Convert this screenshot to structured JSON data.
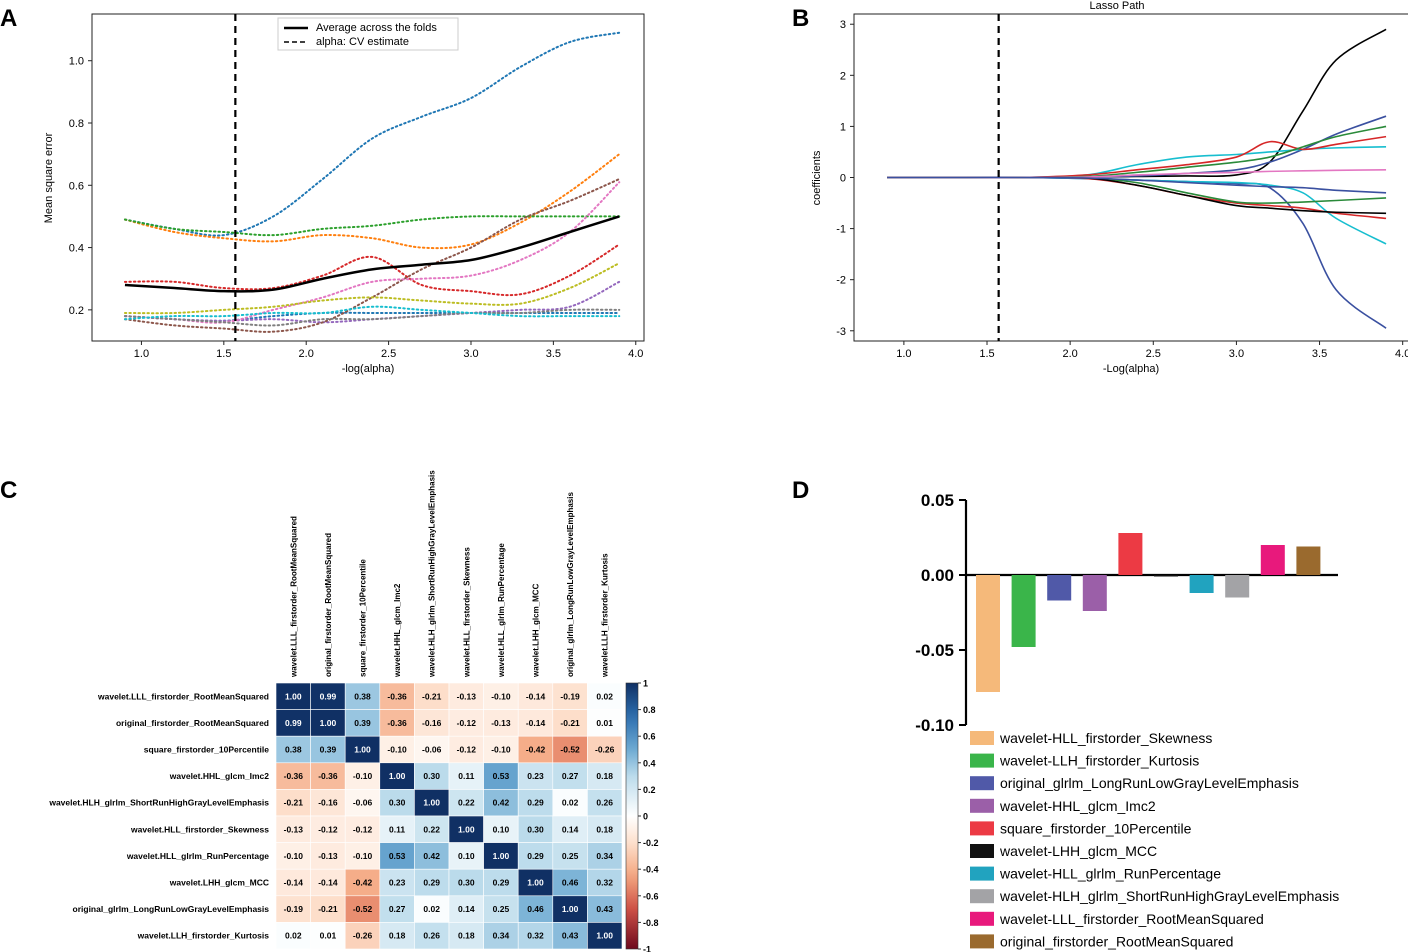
{
  "panels": {
    "a": {
      "letter": "A"
    },
    "b": {
      "letter": "B"
    },
    "c": {
      "letter": "C"
    },
    "d": {
      "letter": "D"
    }
  },
  "chart_data": [
    {
      "id": "A",
      "type": "line",
      "xlabel": "-log(alpha)",
      "ylabel": "Mean square error",
      "xlim": [
        0.7,
        4.05
      ],
      "ylim": [
        0.1,
        1.15
      ],
      "xticks": [
        "1.0",
        "1.5",
        "2.0",
        "2.5",
        "3.0",
        "3.5",
        "4.0"
      ],
      "yticks": [
        "0.2",
        "0.4",
        "0.6",
        "0.8",
        "1.0"
      ],
      "vline": 1.57,
      "legend": {
        "position": "top-center",
        "entries": [
          "Average across the folds",
          "alpha: CV estimate"
        ]
      },
      "x": [
        0.9,
        1.2,
        1.5,
        1.8,
        2.1,
        2.4,
        2.7,
        3.0,
        3.3,
        3.6,
        3.9
      ],
      "average": {
        "name": "Average across the folds",
        "color": "#000000",
        "values": [
          0.28,
          0.27,
          0.26,
          0.265,
          0.3,
          0.33,
          0.345,
          0.36,
          0.4,
          0.45,
          0.5
        ]
      },
      "series": [
        {
          "color": "#1f77b4",
          "values": [
            0.18,
            0.17,
            0.165,
            0.18,
            0.19,
            0.19,
            0.19,
            0.19,
            0.19,
            0.19,
            0.19
          ]
        },
        {
          "color": "#1f77b4",
          "values": [
            0.49,
            0.46,
            0.44,
            0.5,
            0.62,
            0.75,
            0.82,
            0.88,
            0.98,
            1.06,
            1.09
          ]
        },
        {
          "color": "#ff7f0e",
          "values": [
            0.49,
            0.45,
            0.43,
            0.42,
            0.44,
            0.43,
            0.4,
            0.41,
            0.48,
            0.58,
            0.7
          ]
        },
        {
          "color": "#2ca02c",
          "values": [
            0.49,
            0.46,
            0.45,
            0.44,
            0.46,
            0.47,
            0.49,
            0.5,
            0.5,
            0.5,
            0.5
          ]
        },
        {
          "color": "#d62728",
          "values": [
            0.29,
            0.29,
            0.27,
            0.27,
            0.31,
            0.37,
            0.28,
            0.26,
            0.25,
            0.31,
            0.41
          ]
        },
        {
          "color": "#9467bd",
          "values": [
            0.18,
            0.17,
            0.165,
            0.17,
            0.16,
            0.17,
            0.18,
            0.19,
            0.2,
            0.21,
            0.29
          ]
        },
        {
          "color": "#8c564b",
          "values": [
            0.17,
            0.15,
            0.14,
            0.13,
            0.16,
            0.24,
            0.33,
            0.4,
            0.49,
            0.55,
            0.62
          ]
        },
        {
          "color": "#e377c2",
          "values": [
            0.18,
            0.17,
            0.16,
            0.2,
            0.24,
            0.29,
            0.3,
            0.31,
            0.36,
            0.45,
            0.61
          ]
        },
        {
          "color": "#7f7f7f",
          "values": [
            0.18,
            0.17,
            0.16,
            0.15,
            0.17,
            0.17,
            0.18,
            0.19,
            0.19,
            0.2,
            0.2
          ]
        },
        {
          "color": "#bcbd22",
          "values": [
            0.19,
            0.19,
            0.2,
            0.21,
            0.23,
            0.24,
            0.23,
            0.22,
            0.22,
            0.27,
            0.35
          ]
        },
        {
          "color": "#17becf",
          "values": [
            0.17,
            0.18,
            0.18,
            0.19,
            0.19,
            0.21,
            0.2,
            0.19,
            0.18,
            0.18,
            0.18
          ]
        }
      ]
    },
    {
      "id": "B",
      "type": "line",
      "title": "Lasso Path",
      "xlabel": "-Log(alpha)",
      "ylabel": "coefficients",
      "xlim": [
        0.7,
        4.05
      ],
      "ylim": [
        -3.2,
        3.2
      ],
      "xticks": [
        "1.0",
        "1.5",
        "2.0",
        "2.5",
        "3.0",
        "3.5",
        "4.0"
      ],
      "yticks": [
        "-3",
        "-2",
        "-1",
        "0",
        "1",
        "2",
        "3"
      ],
      "vline": 1.57,
      "x": [
        0.9,
        1.3,
        1.7,
        2.1,
        2.4,
        2.7,
        3.0,
        3.2,
        3.4,
        3.6,
        3.9
      ],
      "series": [
        {
          "color": "#000000",
          "values": [
            0,
            0,
            0,
            0.01,
            0.02,
            0.03,
            0.05,
            0.3,
            1.3,
            2.3,
            2.9
          ]
        },
        {
          "color": "#3a50a0",
          "values": [
            0,
            0,
            0,
            -0.02,
            -0.05,
            -0.08,
            -0.12,
            -0.2,
            -0.9,
            -2.2,
            -2.95
          ]
        },
        {
          "color": "#3a50a0",
          "values": [
            0,
            0,
            0,
            0.01,
            0.03,
            0.08,
            0.15,
            0.3,
            0.55,
            0.85,
            1.2
          ]
        },
        {
          "color": "#17becf",
          "values": [
            0,
            0,
            0,
            -0.02,
            -0.05,
            -0.08,
            -0.1,
            -0.15,
            -0.3,
            -0.8,
            -1.3
          ]
        },
        {
          "color": "#17becf",
          "values": [
            0,
            0,
            0,
            0.05,
            0.25,
            0.4,
            0.45,
            0.5,
            0.55,
            0.58,
            0.6
          ]
        },
        {
          "color": "#d62728",
          "values": [
            0,
            0,
            0,
            0.05,
            0.15,
            0.25,
            0.4,
            0.7,
            0.55,
            0.65,
            0.8
          ]
        },
        {
          "color": "#d62728",
          "values": [
            0,
            0,
            0,
            -0.02,
            -0.15,
            -0.35,
            -0.5,
            -0.55,
            -0.6,
            -0.7,
            -0.8
          ]
        },
        {
          "color": "#2a8a3a",
          "values": [
            0,
            0,
            0,
            -0.01,
            -0.1,
            -0.3,
            -0.48,
            -0.5,
            -0.48,
            -0.45,
            -0.4
          ]
        },
        {
          "color": "#2a8a3a",
          "values": [
            0,
            0,
            0,
            0.02,
            0.1,
            0.2,
            0.3,
            0.4,
            0.6,
            0.8,
            1.0
          ]
        },
        {
          "color": "#000000",
          "values": [
            0,
            0,
            0,
            -0.01,
            -0.15,
            -0.35,
            -0.55,
            -0.6,
            -0.65,
            -0.68,
            -0.7
          ]
        },
        {
          "color": "#e377c2",
          "values": [
            0,
            0,
            0,
            0.01,
            0.05,
            0.08,
            0.1,
            0.12,
            0.13,
            0.14,
            0.15
          ]
        },
        {
          "color": "#3a50a0",
          "values": [
            0,
            0,
            0,
            -0.01,
            -0.05,
            -0.1,
            -0.15,
            -0.18,
            -0.2,
            -0.25,
            -0.3
          ]
        }
      ]
    },
    {
      "id": "C",
      "type": "heatmap",
      "labels": [
        "wavelet.LLL_firstorder_RootMeanSquared",
        "original_firstorder_RootMeanSquared",
        "square_firstorder_10Percentile",
        "wavelet.HHL_glcm_Imc2",
        "wavelet.HLH_glrlm_ShortRunHighGrayLevelEmphasis",
        "wavelet.HLL_firstorder_Skewness",
        "wavelet.HLL_glrlm_RunPercentage",
        "wavelet.LHH_glcm_MCC",
        "original_glrlm_LongRunLowGrayLevelEmphasis",
        "wavelet.LLH_firstorder_Kurtosis"
      ],
      "matrix": [
        [
          "1.00",
          "0.99",
          "0.38",
          "-0.36",
          "-0.21",
          "-0.13",
          "-0.10",
          "-0.14",
          "-0.19",
          "0.02"
        ],
        [
          "0.99",
          "1.00",
          "0.39",
          "-0.36",
          "-0.16",
          "-0.12",
          "-0.13",
          "-0.14",
          "-0.21",
          "0.01"
        ],
        [
          "0.38",
          "0.39",
          "1.00",
          "-0.10",
          "-0.06",
          "-0.12",
          "-0.10",
          "-0.42",
          "-0.52",
          "-0.26"
        ],
        [
          "-0.36",
          "-0.36",
          "-0.10",
          "1.00",
          "0.30",
          "0.11",
          "0.53",
          "0.23",
          "0.27",
          "0.18"
        ],
        [
          "-0.21",
          "-0.16",
          "-0.06",
          "0.30",
          "1.00",
          "0.22",
          "0.42",
          "0.29",
          "0.02",
          "0.26"
        ],
        [
          "-0.13",
          "-0.12",
          "-0.12",
          "0.11",
          "0.22",
          "1.00",
          "0.10",
          "0.30",
          "0.14",
          "0.18"
        ],
        [
          "-0.10",
          "-0.13",
          "-0.10",
          "0.53",
          "0.42",
          "0.10",
          "1.00",
          "0.29",
          "0.25",
          "0.34"
        ],
        [
          "-0.14",
          "-0.14",
          "-0.42",
          "0.23",
          "0.29",
          "0.30",
          "0.29",
          "1.00",
          "0.46",
          "0.32"
        ],
        [
          "-0.19",
          "-0.21",
          "-0.52",
          "0.27",
          "0.02",
          "0.14",
          "0.25",
          "0.46",
          "1.00",
          "0.43"
        ],
        [
          "0.02",
          "0.01",
          "-0.26",
          "0.18",
          "0.26",
          "0.18",
          "0.34",
          "0.32",
          "0.43",
          "1.00"
        ]
      ],
      "colorbar_ticks": [
        "1",
        "0.8",
        "0.6",
        "0.4",
        "0.2",
        "0",
        "-0.2",
        "-0.4",
        "-0.6",
        "-0.8",
        "-1"
      ]
    },
    {
      "id": "D",
      "type": "bar",
      "ylim": [
        -0.1,
        0.05
      ],
      "yticks": [
        "0.05",
        "0.00",
        "-0.05",
        "-0.10"
      ],
      "categories": [
        "wavelet-HLL_firstorder_Skewness",
        "wavelet-LLH_firstorder_Kurtosis",
        "original_glrlm_LongRunLowGrayLevelEmphasis",
        "wavelet-HHL_glcm_Imc2",
        "square_firstorder_10Percentile",
        "wavelet-LHH_glcm_MCC",
        "wavelet-HLL_glrlm_RunPercentage",
        "wavelet-HLH_glrlm_ShortRunHighGrayLevelEmphasis",
        "wavelet-LLL_firstorder_RootMeanSquared",
        "original_firstorder_RootMeanSquared"
      ],
      "values": [
        -0.078,
        -0.048,
        -0.017,
        -0.024,
        0.028,
        -0.001,
        -0.012,
        -0.015,
        0.02,
        0.019
      ],
      "colors": [
        "#f5b97a",
        "#3ab54a",
        "#5059a8",
        "#9b5fa8",
        "#ec3a44",
        "#111111",
        "#21a3bf",
        "#a3a3a6",
        "#e8197c",
        "#9a6a2e"
      ]
    }
  ]
}
